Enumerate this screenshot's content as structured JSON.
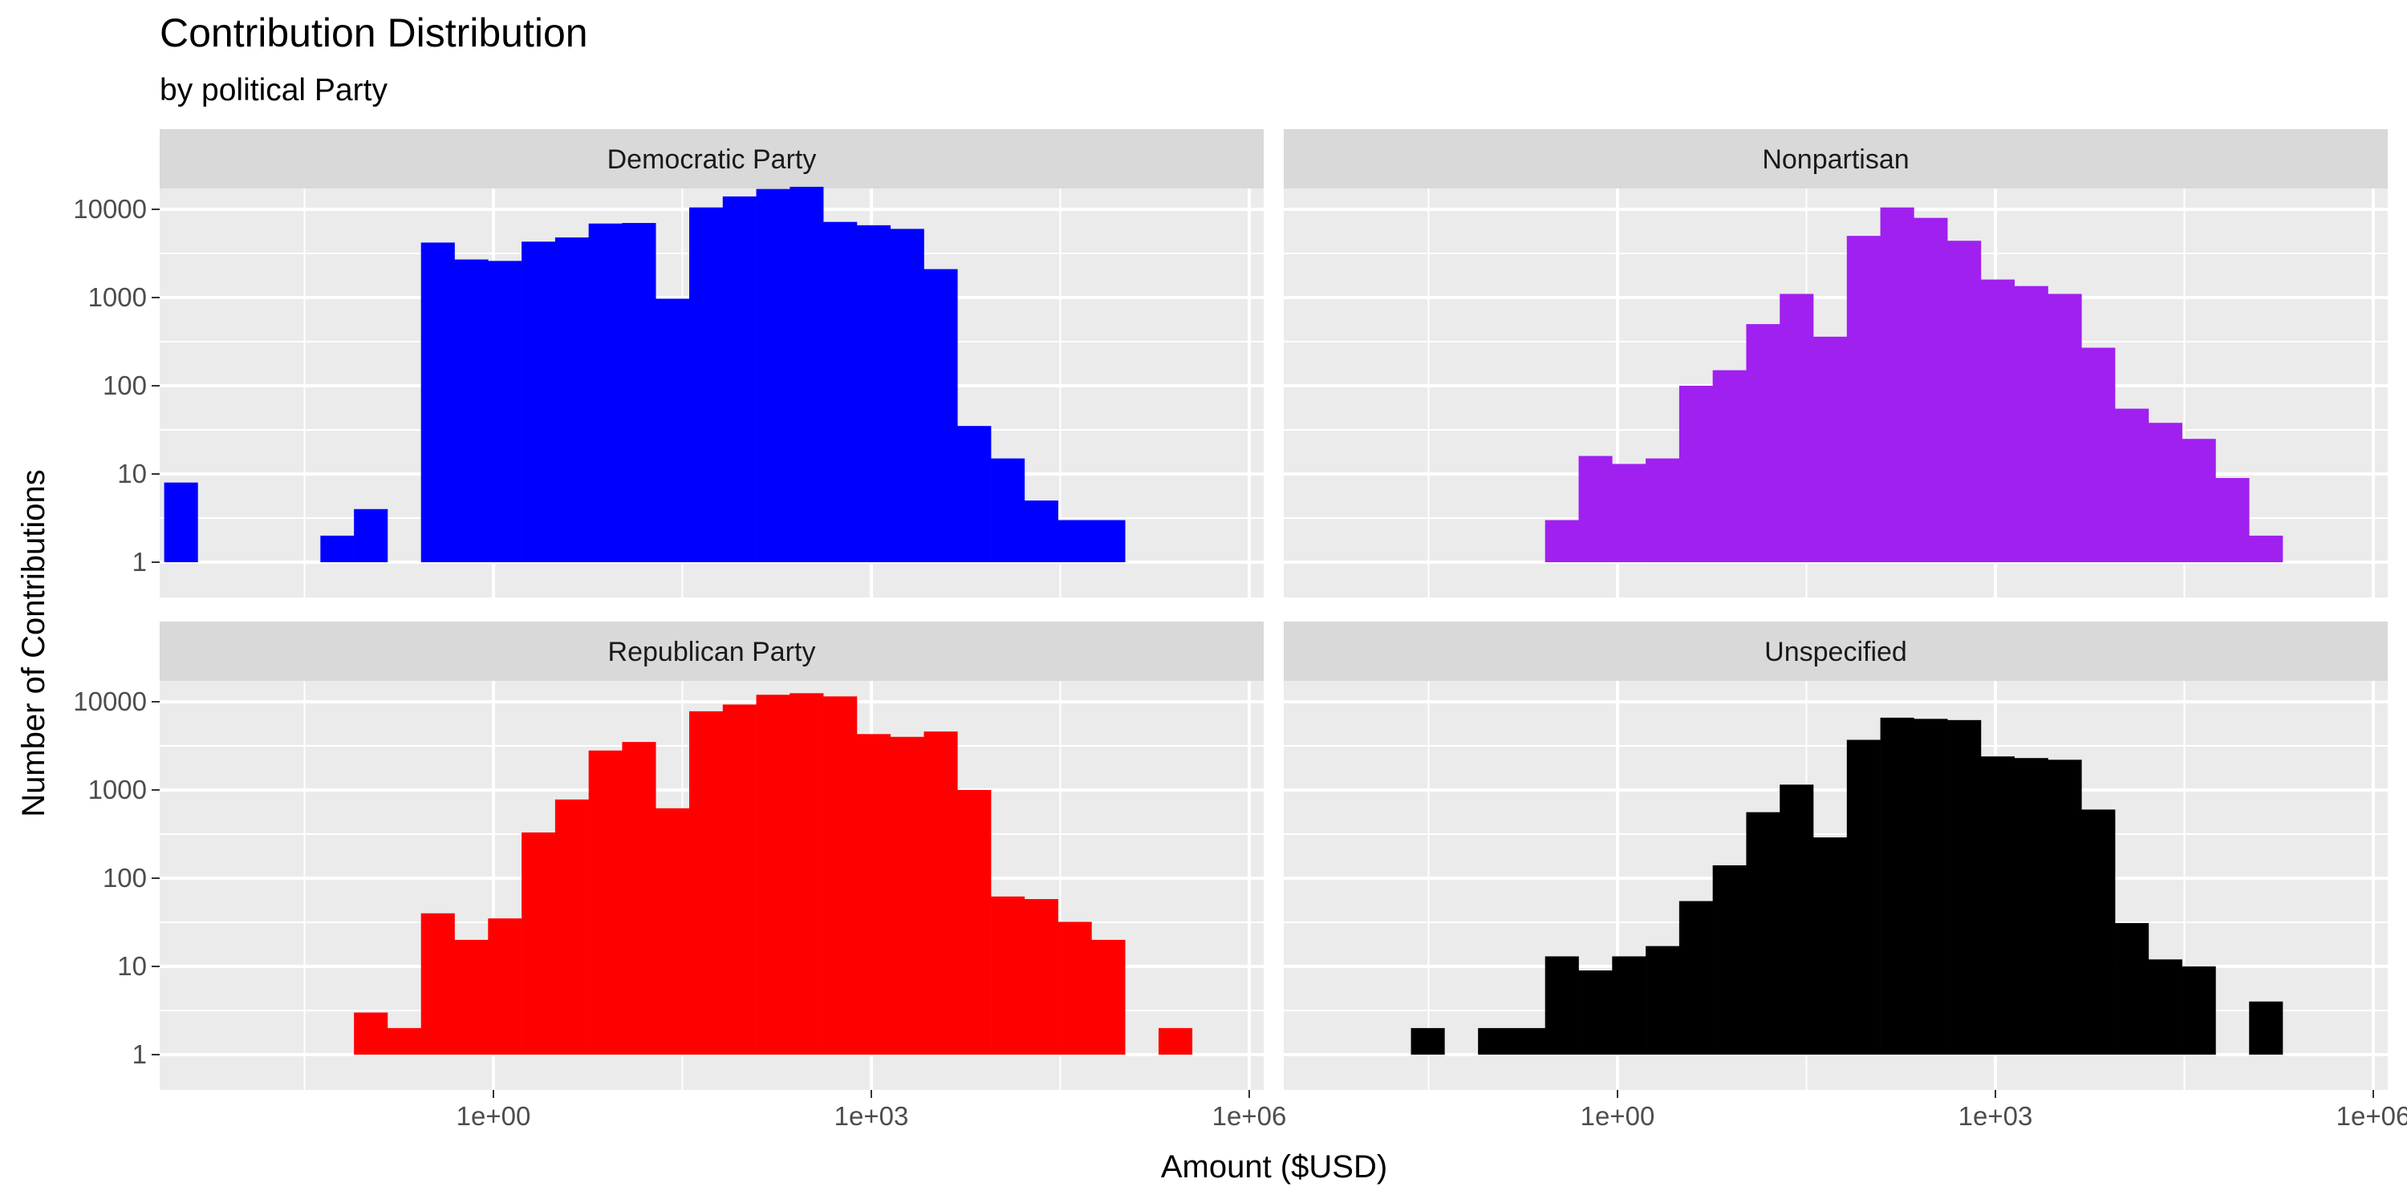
{
  "chart_data": {
    "type": "bar",
    "subtype": "faceted-histogram",
    "title": "Contribution Distribution",
    "subtitle": "by political Party",
    "xlabel": "Amount ($USD)",
    "ylabel": "Number of Contributions",
    "x_scale": "log10",
    "y_scale": "log10",
    "x_ticks": [
      {
        "value": 1,
        "label": "1e+00"
      },
      {
        "value": 1000,
        "label": "1e+03"
      },
      {
        "value": 1000000,
        "label": "1e+06"
      }
    ],
    "y_ticks": [
      {
        "value": 1,
        "label": "1"
      },
      {
        "value": 10,
        "label": "10"
      },
      {
        "value": 100,
        "label": "100"
      },
      {
        "value": 1000,
        "label": "1000"
      },
      {
        "value": 10000,
        "label": "10000"
      }
    ],
    "bin_width_log10": 0.265,
    "grid": true,
    "legend": "none",
    "facets": [
      {
        "name": "Democratic Party",
        "color": "#0000FF",
        "bins": [
          {
            "x": 0.0033,
            "count": 8
          },
          {
            "x": 0.0169,
            "count": 0
          },
          {
            "x": 0.0311,
            "count": 0
          },
          {
            "x": 0.0574,
            "count": 2
          },
          {
            "x": 0.106,
            "count": 4
          },
          {
            "x": 0.1956,
            "count": 0
          },
          {
            "x": 0.361,
            "count": 4200
          },
          {
            "x": 0.6663,
            "count": 2700
          },
          {
            "x": 1.2298,
            "count": 2600
          },
          {
            "x": 2.2697,
            "count": 4300
          },
          {
            "x": 4.1891,
            "count": 4800
          },
          {
            "x": 7.7314,
            "count": 6900
          },
          {
            "x": 14.2692,
            "count": 7000
          },
          {
            "x": 26.3353,
            "count": 970
          },
          {
            "x": 48.6046,
            "count": 10500
          },
          {
            "x": 89.7052,
            "count": 14000
          },
          {
            "x": 165.5604,
            "count": 17000
          },
          {
            "x": 305.5601,
            "count": 18000
          },
          {
            "x": 563.9491,
            "count": 7200
          },
          {
            "x": 1040.8349,
            "count": 6600
          },
          {
            "x": 1920.9667,
            "count": 6000
          },
          {
            "x": 3545.3339,
            "count": 2100
          },
          {
            "x": 6543.3446,
            "count": 35
          },
          {
            "x": 12076.4984,
            "count": 15
          },
          {
            "x": 22288.6945,
            "count": 5
          },
          {
            "x": 41136.3853,
            "count": 3
          },
          {
            "x": 75921.8559,
            "count": 3
          }
        ]
      },
      {
        "name": "Nonpartisan",
        "color": "#A020F0",
        "bins": [
          {
            "x": 0.361,
            "count": 3
          },
          {
            "x": 0.6663,
            "count": 16
          },
          {
            "x": 1.2298,
            "count": 13
          },
          {
            "x": 2.2697,
            "count": 15
          },
          {
            "x": 4.1891,
            "count": 100
          },
          {
            "x": 7.7314,
            "count": 150
          },
          {
            "x": 14.2692,
            "count": 500
          },
          {
            "x": 26.3353,
            "count": 1100
          },
          {
            "x": 48.6046,
            "count": 360
          },
          {
            "x": 89.7052,
            "count": 5000
          },
          {
            "x": 165.5604,
            "count": 10500
          },
          {
            "x": 305.5601,
            "count": 8000
          },
          {
            "x": 563.9491,
            "count": 4400
          },
          {
            "x": 1040.8349,
            "count": 1600
          },
          {
            "x": 1920.9667,
            "count": 1350
          },
          {
            "x": 3545.3339,
            "count": 1100
          },
          {
            "x": 6543.3446,
            "count": 270
          },
          {
            "x": 12076.4984,
            "count": 55
          },
          {
            "x": 22288.6945,
            "count": 38
          },
          {
            "x": 41136.3853,
            "count": 25
          },
          {
            "x": 75921.8559,
            "count": 9
          },
          {
            "x": 140124.7285,
            "count": 2
          }
        ]
      },
      {
        "name": "Republican Party",
        "color": "#FF0000",
        "bins": [
          {
            "x": 0.106,
            "count": 3
          },
          {
            "x": 0.1956,
            "count": 2
          },
          {
            "x": 0.361,
            "count": 40
          },
          {
            "x": 0.6663,
            "count": 20
          },
          {
            "x": 1.2298,
            "count": 35
          },
          {
            "x": 2.2697,
            "count": 330
          },
          {
            "x": 4.1891,
            "count": 780
          },
          {
            "x": 7.7314,
            "count": 2800
          },
          {
            "x": 14.2692,
            "count": 3500
          },
          {
            "x": 26.3353,
            "count": 620
          },
          {
            "x": 48.6046,
            "count": 7800
          },
          {
            "x": 89.7052,
            "count": 9300
          },
          {
            "x": 165.5604,
            "count": 12000
          },
          {
            "x": 305.5601,
            "count": 12500
          },
          {
            "x": 563.9491,
            "count": 11500
          },
          {
            "x": 1040.8349,
            "count": 4300
          },
          {
            "x": 1920.9667,
            "count": 4000
          },
          {
            "x": 3545.3339,
            "count": 4600
          },
          {
            "x": 6543.3446,
            "count": 1000
          },
          {
            "x": 12076.4984,
            "count": 62
          },
          {
            "x": 22288.6945,
            "count": 58
          },
          {
            "x": 41136.3853,
            "count": 32
          },
          {
            "x": 75921.8559,
            "count": 20
          },
          {
            "x": 140124.7285,
            "count": 0
          },
          {
            "x": 258618.3716,
            "count": 2
          }
        ]
      },
      {
        "name": "Unspecified",
        "color": "#000000",
        "bins": [
          {
            "x": 0.0311,
            "count": 2
          },
          {
            "x": 0.0574,
            "count": 0
          },
          {
            "x": 0.106,
            "count": 2
          },
          {
            "x": 0.1956,
            "count": 2
          },
          {
            "x": 0.361,
            "count": 13
          },
          {
            "x": 0.6663,
            "count": 9
          },
          {
            "x": 1.2298,
            "count": 13
          },
          {
            "x": 2.2697,
            "count": 17
          },
          {
            "x": 4.1891,
            "count": 55
          },
          {
            "x": 7.7314,
            "count": 140
          },
          {
            "x": 14.2692,
            "count": 560
          },
          {
            "x": 26.3353,
            "count": 1150
          },
          {
            "x": 48.6046,
            "count": 290
          },
          {
            "x": 89.7052,
            "count": 3700
          },
          {
            "x": 165.5604,
            "count": 6600
          },
          {
            "x": 305.5601,
            "count": 6400
          },
          {
            "x": 563.9491,
            "count": 6200
          },
          {
            "x": 1040.8349,
            "count": 2400
          },
          {
            "x": 1920.9667,
            "count": 2300
          },
          {
            "x": 3545.3339,
            "count": 2200
          },
          {
            "x": 6543.3446,
            "count": 600
          },
          {
            "x": 12076.4984,
            "count": 31
          },
          {
            "x": 22288.6945,
            "count": 12
          },
          {
            "x": 41136.3853,
            "count": 10
          },
          {
            "x": 75921.8559,
            "count": 0
          },
          {
            "x": 140124.7285,
            "count": 4
          }
        ]
      }
    ]
  }
}
